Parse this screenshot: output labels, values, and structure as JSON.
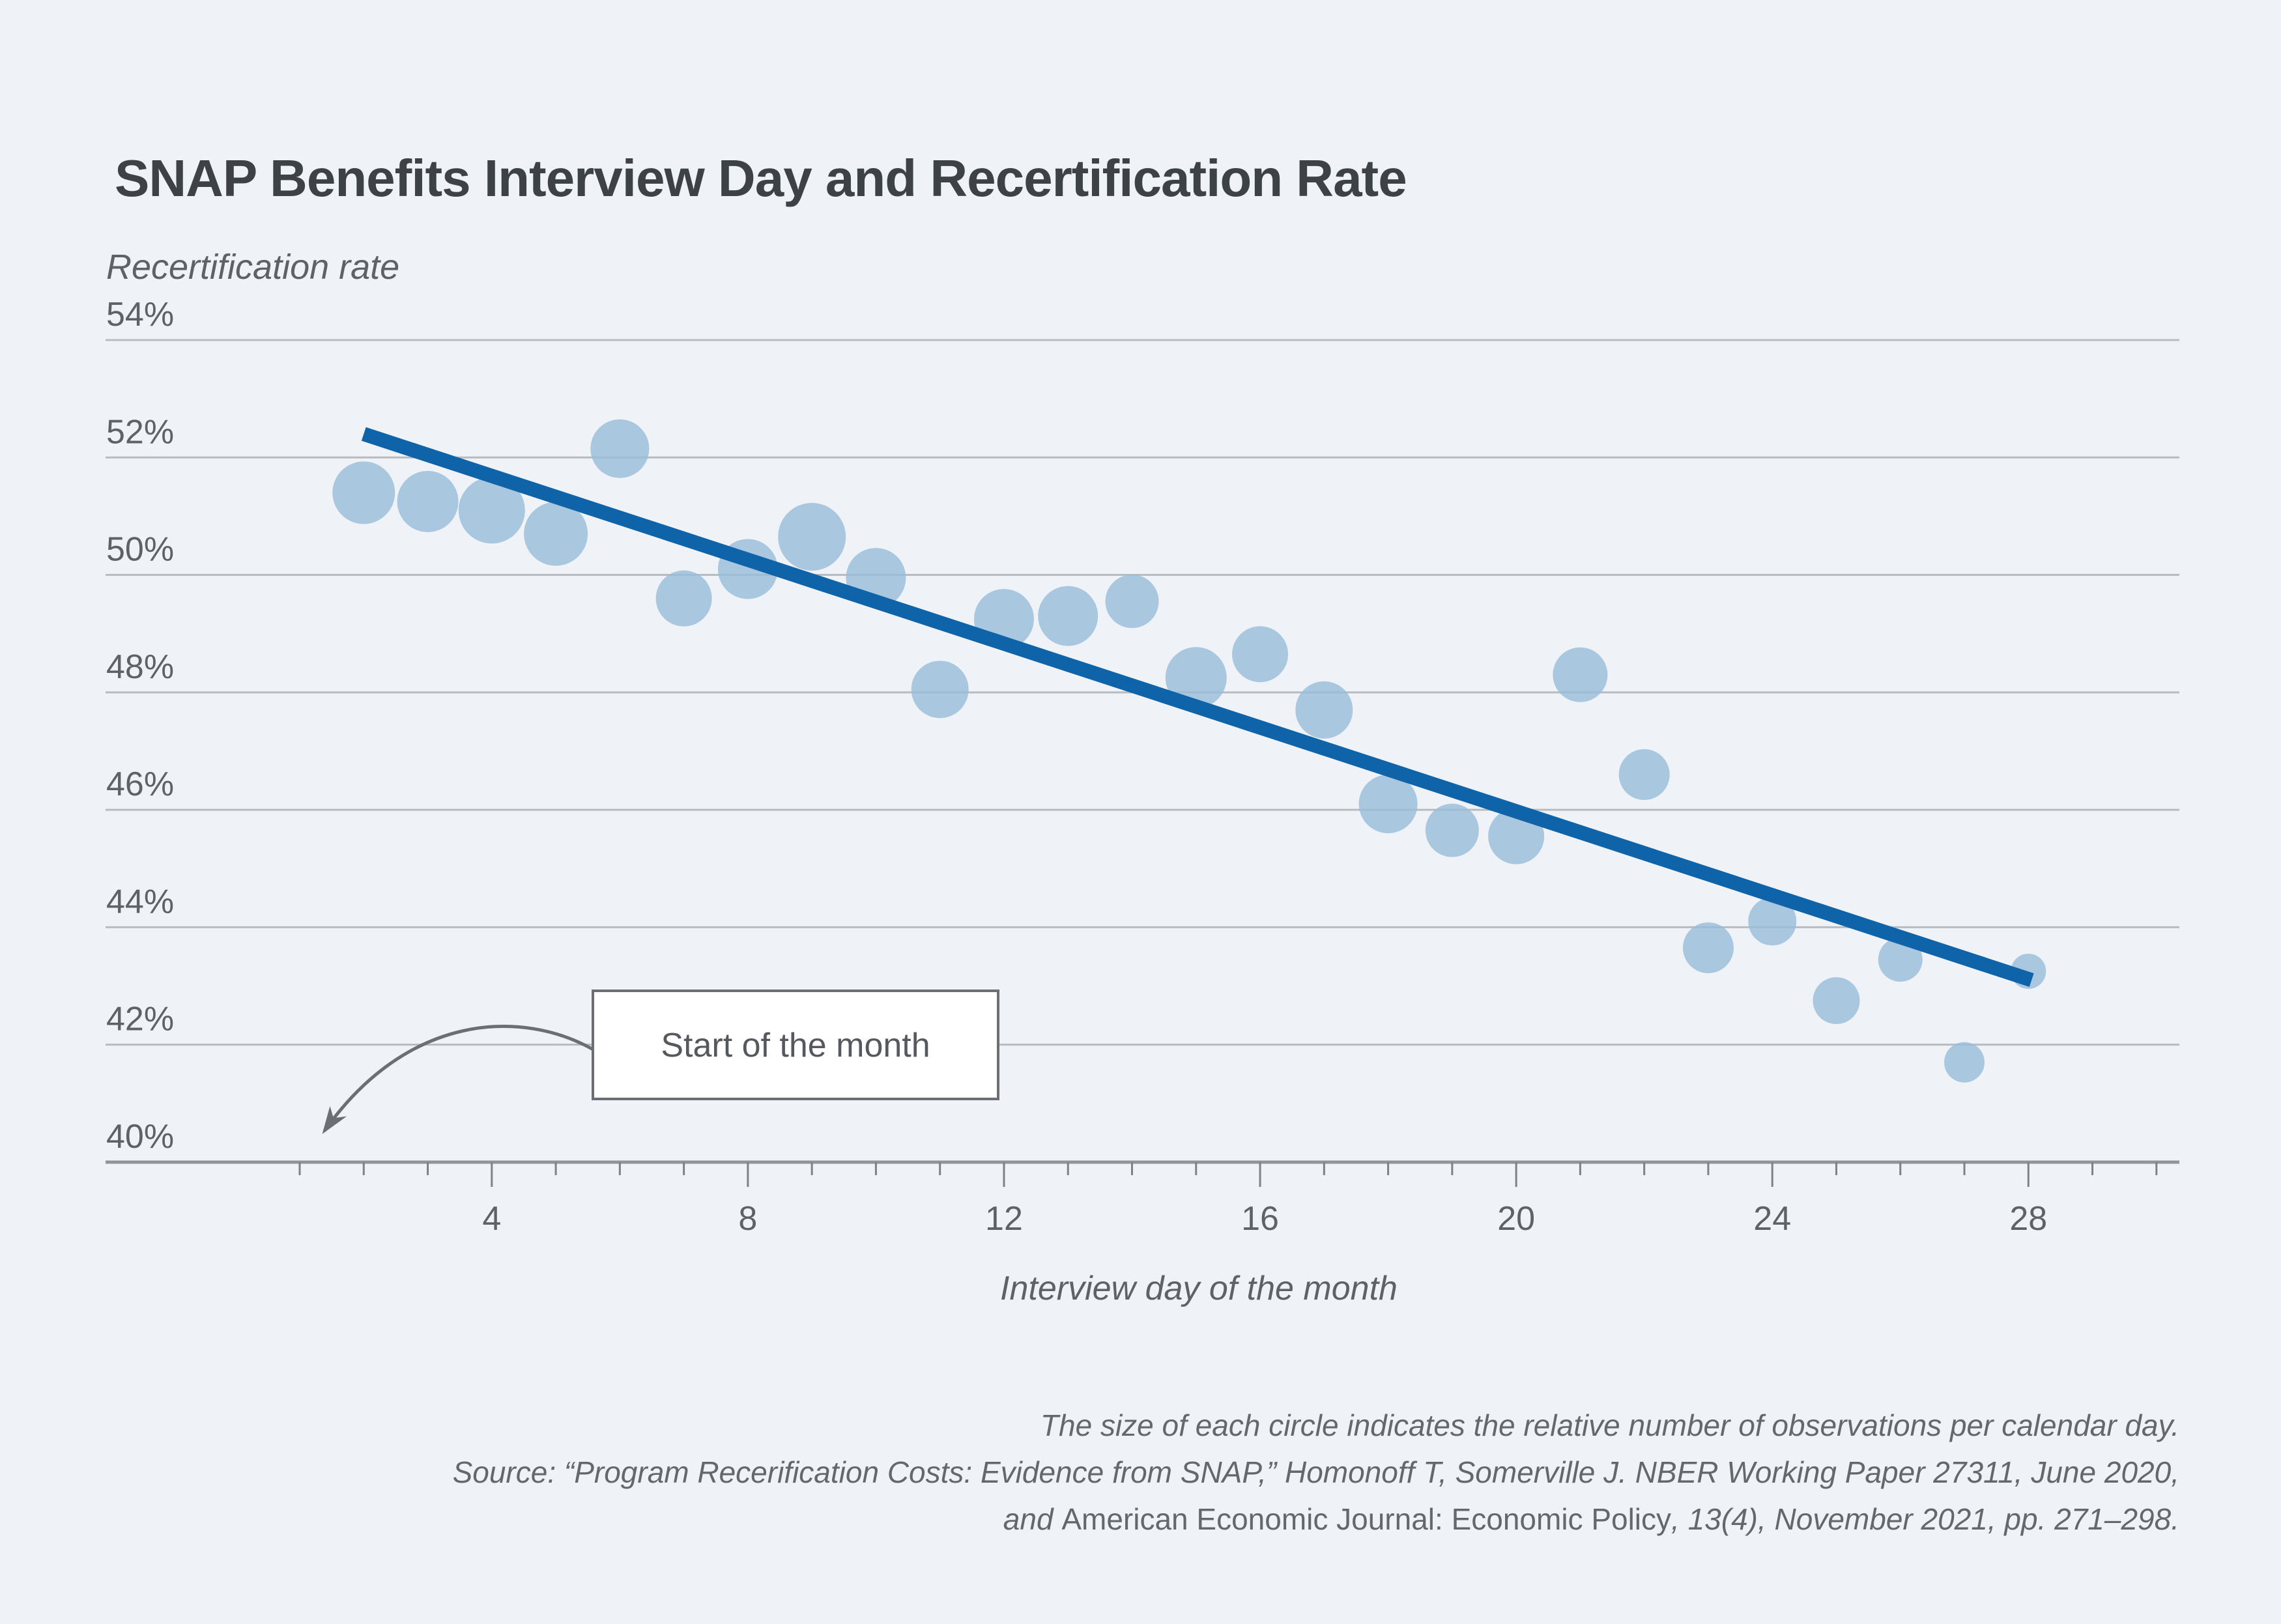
{
  "chart_data": {
    "type": "scatter",
    "title": "SNAP Benefits Interview Day and Recertification Rate",
    "ylabel": "Recertification rate",
    "xlabel": "Interview day of the month",
    "ylim": [
      40,
      54
    ],
    "yticks": [
      54,
      52,
      50,
      48,
      46,
      44,
      42,
      40
    ],
    "ytick_suffix": "%",
    "xticks_labeled": [
      4,
      8,
      12,
      16,
      20,
      24,
      28
    ],
    "xtick_minor_first": 1,
    "xtick_minor_last": 30,
    "grid": true,
    "legend": "none",
    "size_note": "circle size = relative number of observations per calendar day",
    "points": [
      {
        "day": 2,
        "rate": 51.4,
        "size": 48
      },
      {
        "day": 3,
        "rate": 51.25,
        "size": 47
      },
      {
        "day": 4,
        "rate": 51.1,
        "size": 51
      },
      {
        "day": 5,
        "rate": 50.7,
        "size": 49
      },
      {
        "day": 6,
        "rate": 52.15,
        "size": 45
      },
      {
        "day": 7,
        "rate": 49.6,
        "size": 43
      },
      {
        "day": 8,
        "rate": 50.1,
        "size": 46
      },
      {
        "day": 9,
        "rate": 50.65,
        "size": 52
      },
      {
        "day": 10,
        "rate": 49.95,
        "size": 46
      },
      {
        "day": 11,
        "rate": 48.05,
        "size": 44
      },
      {
        "day": 12,
        "rate": 49.25,
        "size": 46
      },
      {
        "day": 13,
        "rate": 49.3,
        "size": 46
      },
      {
        "day": 14,
        "rate": 49.55,
        "size": 41
      },
      {
        "day": 15,
        "rate": 48.25,
        "size": 47
      },
      {
        "day": 16,
        "rate": 48.65,
        "size": 43
      },
      {
        "day": 17,
        "rate": 47.7,
        "size": 44
      },
      {
        "day": 18,
        "rate": 46.1,
        "size": 45
      },
      {
        "day": 19,
        "rate": 45.65,
        "size": 41
      },
      {
        "day": 20,
        "rate": 45.55,
        "size": 43
      },
      {
        "day": 21,
        "rate": 48.3,
        "size": 42
      },
      {
        "day": 22,
        "rate": 46.6,
        "size": 39
      },
      {
        "day": 23,
        "rate": 43.65,
        "size": 39
      },
      {
        "day": 24,
        "rate": 44.1,
        "size": 37
      },
      {
        "day": 25,
        "rate": 42.75,
        "size": 36
      },
      {
        "day": 26,
        "rate": 43.45,
        "size": 34
      },
      {
        "day": 27,
        "rate": 41.7,
        "size": 31
      },
      {
        "day": 28,
        "rate": 43.25,
        "size": 27
      }
    ],
    "trend_line": {
      "from_day": 2.0,
      "from_rate": 52.4,
      "to_day": 28.05,
      "to_rate": 43.1
    },
    "annotation": {
      "text": "Start of the month",
      "points_to_day": 1
    },
    "colors": {
      "background": "#eff3f8",
      "point_fill": "#98bcda",
      "point_opacity": 0.8,
      "trend": "#0f63a8",
      "gridline": "#b7bcc1",
      "axis_line": "#8f959a",
      "tick": "#7c8287",
      "label_text": "#5d6267",
      "title_text": "#3d4247",
      "annotation_border": "#6a6f74",
      "annotation_fill": "#ffffff"
    }
  },
  "footer": {
    "note": "The size of each circle indicates the relative number of observations per calendar day.",
    "source_line1": "Source: “Program Recerification Costs: Evidence from SNAP,” Homonoff T, Somerville J. NBER Working Paper 27311, June 2020,",
    "source_line2_pre": "and ",
    "source_line2_journal": "American Economic Journal: Economic Policy",
    "source_line2_post": ", 13(4), November 2021, pp. 271–298."
  }
}
